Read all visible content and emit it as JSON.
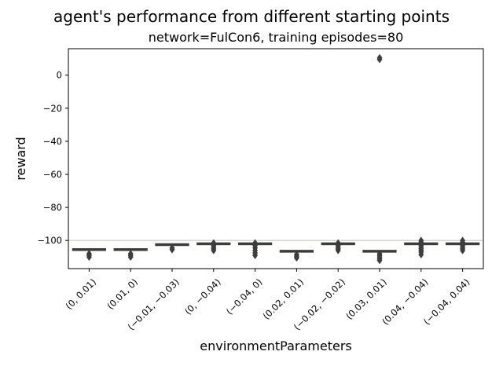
{
  "chart_data": {
    "type": "box",
    "title": "agent's performance from different starting points",
    "subtitle": "network=FulCon6, training episodes=80",
    "xlabel": "environmentParameters",
    "ylabel": "reward",
    "ylim": [
      -117,
      16
    ],
    "yticks": [
      0,
      -20,
      -40,
      -60,
      -80,
      -100
    ],
    "ytick_labels": [
      "0",
      "−20",
      "−40",
      "−60",
      "−80",
      "−100"
    ],
    "reference_line": {
      "y": -100,
      "color": "#c8dfc4"
    },
    "box_color": "#3d3d3d",
    "categories": [
      "(0, 0.01)",
      "(0.01, 0)",
      "(-0.01, -0.03)",
      "(0, -0.04)",
      "(-0.04, 0)",
      "(0.02, 0.01)",
      "(-0.02, -0.02)",
      "(0.03, 0.01)",
      "(0.04, -0.04)",
      "(-0.04, 0.04)"
    ],
    "category_labels": [
      "(0, 0.01)",
      "(0.01, 0)",
      "(−0.01, −0.03)",
      "(0, −0.04)",
      "(−0.04, 0)",
      "(0.02, 0.01)",
      "(−0.02, −0.02)",
      "(0.03, 0.01)",
      "(0.04, −0.04)",
      "(−0.04, 0.04)"
    ],
    "boxes": [
      {
        "category": "(0, 0.01)",
        "q1": -106,
        "median": -105.5,
        "q3": -105,
        "whisker_low": -106,
        "whisker_high": -105,
        "outliers": [
          -108,
          -109,
          -110
        ]
      },
      {
        "category": "(0.01, 0)",
        "q1": -106,
        "median": -105.5,
        "q3": -105,
        "whisker_low": -106,
        "whisker_high": -105,
        "outliers": [
          -108,
          -109,
          -110
        ]
      },
      {
        "category": "(-0.01, -0.03)",
        "q1": -103,
        "median": -102.5,
        "q3": -102,
        "whisker_low": -103.5,
        "whisker_high": -102,
        "outliers": [
          -104.5,
          -105.5
        ]
      },
      {
        "category": "(0, -0.04)",
        "q1": -102,
        "median": -102,
        "q3": -102,
        "whisker_low": -102,
        "whisker_high": -102,
        "outliers": [
          -101.5,
          -103,
          -104,
          -105,
          -106
        ]
      },
      {
        "category": "(-0.04, 0)",
        "q1": -102,
        "median": -102,
        "q3": -102,
        "whisker_low": -102,
        "whisker_high": -102,
        "outliers": [
          -101.5,
          -103,
          -104.5,
          -106,
          -107.5,
          -109
        ]
      },
      {
        "category": "(0.02, 0.01)",
        "q1": -107,
        "median": -106.5,
        "q3": -106,
        "whisker_low": -107,
        "whisker_high": -106,
        "outliers": [
          -108.5,
          -109.5,
          -110.5
        ]
      },
      {
        "category": "(-0.02, -0.02)",
        "q1": -102,
        "median": -102,
        "q3": -102,
        "whisker_low": -102,
        "whisker_high": -102,
        "outliers": [
          -101.5,
          -103,
          -104,
          -105,
          -106
        ]
      },
      {
        "category": "(0.03, 0.01)",
        "q1": -107,
        "median": -106.5,
        "q3": -106,
        "whisker_low": -107,
        "whisker_high": -106,
        "outliers": [
          10.5,
          9.5,
          -108,
          -109,
          -110,
          -111,
          -112
        ]
      },
      {
        "category": "(0.04, -0.04)",
        "q1": -102,
        "median": -102,
        "q3": -102,
        "whisker_low": -102,
        "whisker_high": -102,
        "outliers": [
          -100,
          -101,
          -103,
          -104,
          -105,
          -106,
          -107,
          -108.5
        ]
      },
      {
        "category": "(-0.04, 0.04)",
        "q1": -102,
        "median": -102,
        "q3": -102,
        "whisker_low": -102,
        "whisker_high": -102,
        "outliers": [
          -100,
          -101,
          -103,
          -104,
          -105,
          -106
        ]
      }
    ]
  }
}
